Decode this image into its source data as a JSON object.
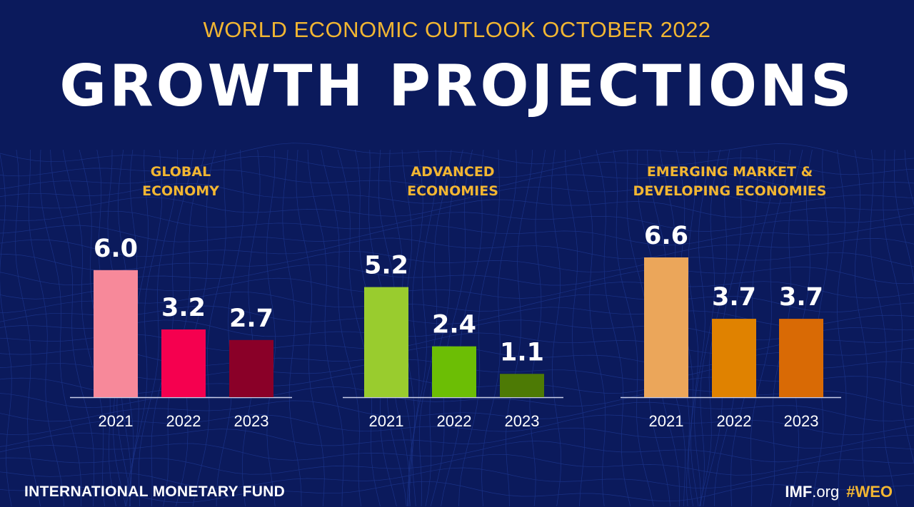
{
  "header": {
    "supertitle": "WORLD ECONOMIC OUTLOOK OCTOBER 2022",
    "title": "GROWTH PROJECTIONS"
  },
  "footer": {
    "org_name": "INTERNATIONAL MONETARY FUND",
    "site_bold": "IMF",
    "site_suffix": ".org",
    "hashtag": "#WEO"
  },
  "colors": {
    "background": "#0b1a5c",
    "title_accent": "#f2b632",
    "panel_title": "#f2b632",
    "text": "#ffffff"
  },
  "chart_data": [
    {
      "type": "bar",
      "title_lines": [
        "GLOBAL",
        "ECONOMY"
      ],
      "categories": [
        "2021",
        "2022",
        "2023"
      ],
      "values": [
        6.0,
        3.2,
        2.7
      ],
      "labels": [
        "6.0",
        "3.2",
        "2.7"
      ],
      "colors": [
        "#f7899a",
        "#f5004f",
        "#8a0028"
      ],
      "ylim": [
        0,
        6.6
      ]
    },
    {
      "type": "bar",
      "title_lines": [
        "ADVANCED",
        "ECONOMIES"
      ],
      "categories": [
        "2021",
        "2022",
        "2023"
      ],
      "values": [
        5.2,
        2.4,
        1.1
      ],
      "labels": [
        "5.2",
        "2.4",
        "1.1"
      ],
      "colors": [
        "#99cc2e",
        "#6cbe05",
        "#4d7a05"
      ],
      "ylim": [
        0,
        6.6
      ]
    },
    {
      "type": "bar",
      "title_lines": [
        "EMERGING MARKET &",
        "DEVELOPING ECONOMIES"
      ],
      "categories": [
        "2021",
        "2022",
        "2023"
      ],
      "values": [
        6.6,
        3.7,
        3.7
      ],
      "labels": [
        "6.6",
        "3.7",
        "3.7"
      ],
      "colors": [
        "#eba65a",
        "#e08200",
        "#d96a05"
      ],
      "ylim": [
        0,
        6.6
      ]
    }
  ]
}
